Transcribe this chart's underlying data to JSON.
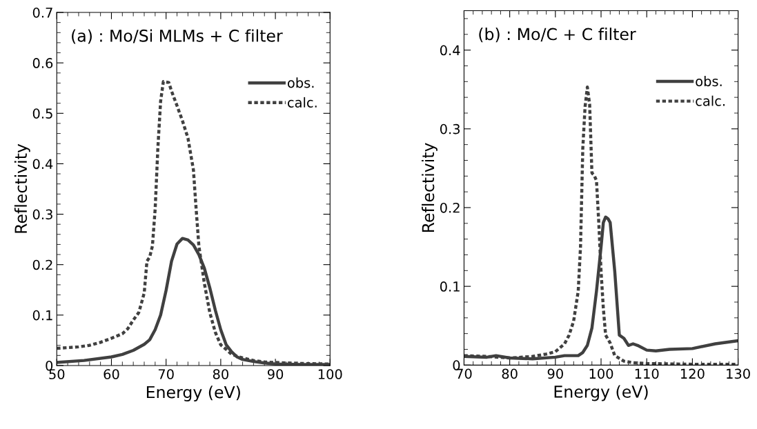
{
  "chart_data": [
    {
      "type": "line",
      "title": "(a) : Mo/Si MLMs + C filter",
      "xlabel": "Energy (eV)",
      "ylabel": "Reflectivity",
      "xlim": [
        50,
        100
      ],
      "xticks": [
        50,
        60,
        70,
        80,
        90,
        100
      ],
      "ylim": [
        0,
        0.7
      ],
      "yticks": [
        0,
        0.1,
        0.2,
        0.3,
        0.4,
        0.5,
        0.6,
        0.7
      ],
      "legend": "right",
      "grid": false,
      "series": [
        {
          "name": "obs.",
          "color": "#404040",
          "line_style": "solid",
          "x": [
            50,
            55,
            60,
            62,
            64,
            66,
            67,
            68,
            69,
            70,
            71,
            72,
            73,
            74,
            75,
            76,
            77,
            78,
            79,
            80,
            81,
            82,
            83,
            84,
            86,
            88,
            90,
            95,
            100
          ],
          "values": [
            0.006,
            0.01,
            0.017,
            0.022,
            0.03,
            0.042,
            0.051,
            0.071,
            0.1,
            0.149,
            0.207,
            0.241,
            0.252,
            0.249,
            0.239,
            0.22,
            0.193,
            0.154,
            0.11,
            0.071,
            0.041,
            0.027,
            0.017,
            0.012,
            0.008,
            0.005,
            0.003,
            0.002,
            0.002
          ]
        },
        {
          "name": "calc.",
          "color": "#404040",
          "line_style": "dotted",
          "x": [
            50,
            54,
            56,
            58,
            60,
            62,
            63,
            64,
            65,
            65.5,
            66,
            66.5,
            67,
            67.5,
            68,
            68.5,
            69,
            69.5,
            70.5,
            71,
            72,
            73,
            74,
            75,
            75.5,
            76,
            77,
            78,
            79,
            80,
            81,
            82,
            84,
            86,
            88,
            90,
            95,
            100
          ],
          "values": [
            0.034,
            0.037,
            0.04,
            0.046,
            0.054,
            0.063,
            0.073,
            0.09,
            0.105,
            0.124,
            0.144,
            0.207,
            0.215,
            0.237,
            0.31,
            0.432,
            0.524,
            0.563,
            0.561,
            0.544,
            0.515,
            0.485,
            0.451,
            0.388,
            0.31,
            0.237,
            0.163,
            0.105,
            0.066,
            0.041,
            0.032,
            0.022,
            0.015,
            0.01,
            0.007,
            0.006,
            0.004,
            0.003
          ]
        }
      ]
    },
    {
      "type": "line",
      "title": "(b) : Mo/C + C filter",
      "xlabel": "Energy (eV)",
      "ylabel": "Reflectivity",
      "xlim": [
        70,
        130
      ],
      "xticks": [
        70,
        80,
        90,
        100,
        110,
        120,
        130
      ],
      "ylim": [
        0,
        0.45
      ],
      "yticks": [
        0,
        0.1,
        0.2,
        0.3,
        0.4
      ],
      "legend": "right",
      "grid": false,
      "series": [
        {
          "name": "obs.",
          "color": "#404040",
          "line_style": "solid",
          "x": [
            70,
            75,
            77,
            80,
            85,
            90,
            92,
            94,
            95,
            96,
            97,
            98,
            99,
            100,
            100.5,
            101,
            101.5,
            102,
            103,
            104,
            105,
            106,
            107,
            108,
            110,
            112,
            115,
            120,
            125,
            130
          ],
          "values": [
            0.011,
            0.01,
            0.012,
            0.009,
            0.008,
            0.01,
            0.012,
            0.012,
            0.012,
            0.016,
            0.025,
            0.047,
            0.094,
            0.15,
            0.181,
            0.188,
            0.186,
            0.181,
            0.119,
            0.038,
            0.034,
            0.025,
            0.027,
            0.025,
            0.019,
            0.018,
            0.02,
            0.021,
            0.027,
            0.031
          ]
        },
        {
          "name": "calc.",
          "color": "#404040",
          "line_style": "dotted",
          "x": [
            70,
            75,
            80,
            85,
            88,
            90,
            92,
            93,
            94,
            95,
            95.5,
            96,
            96.5,
            97,
            97.5,
            98,
            98.5,
            99,
            99.5,
            100,
            100.5,
            101,
            102,
            103,
            105,
            107,
            110,
            120,
            130
          ],
          "values": [
            0.012,
            0.011,
            0.009,
            0.011,
            0.014,
            0.017,
            0.027,
            0.038,
            0.056,
            0.094,
            0.15,
            0.275,
            0.328,
            0.353,
            0.331,
            0.244,
            0.241,
            0.234,
            0.181,
            0.119,
            0.072,
            0.038,
            0.028,
            0.012,
            0.005,
            0.003,
            0.002,
            0.001,
            0.001
          ]
        }
      ]
    }
  ]
}
